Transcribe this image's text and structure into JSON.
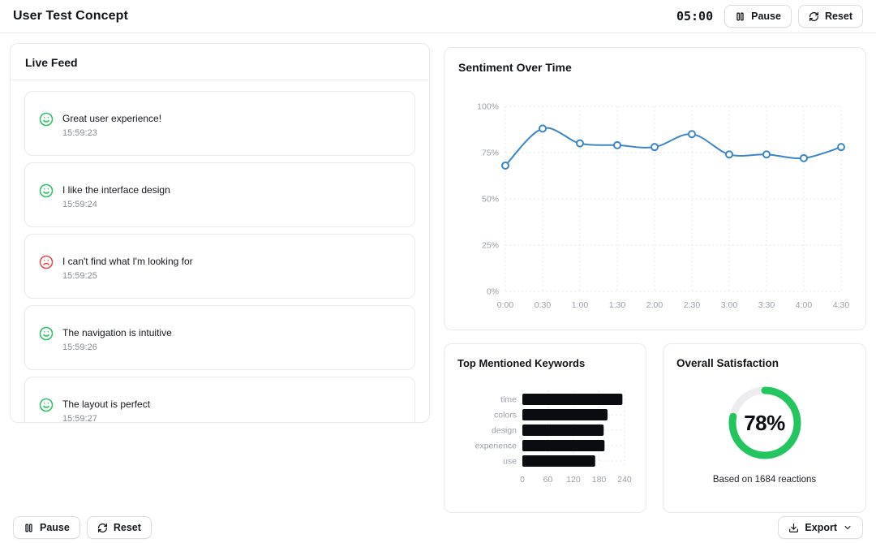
{
  "header": {
    "title": "User Test Concept",
    "timer": "05:00",
    "pause_label": "Pause",
    "reset_label": "Reset"
  },
  "live_feed": {
    "title": "Live Feed",
    "items": [
      {
        "sentiment": "positive",
        "text": "Great user experience!",
        "time": "15:59:23"
      },
      {
        "sentiment": "positive",
        "text": "I like the interface design",
        "time": "15:59:24"
      },
      {
        "sentiment": "negative",
        "text": "I can't find what I'm looking for",
        "time": "15:59:25"
      },
      {
        "sentiment": "positive",
        "text": "The navigation is intuitive",
        "time": "15:59:26"
      },
      {
        "sentiment": "positive",
        "text": "The layout is perfect",
        "time": "15:59:27"
      }
    ]
  },
  "chart_data": [
    {
      "type": "line",
      "title": "Sentiment Over Time",
      "x": [
        "0:00",
        "0:30",
        "1:00",
        "1:30",
        "2:00",
        "2:30",
        "3:00",
        "3:30",
        "4:00",
        "4:30"
      ],
      "values": [
        68,
        88,
        80,
        79,
        78,
        85,
        74,
        74,
        72,
        78
      ],
      "ylim": [
        0,
        100
      ],
      "yticks": [
        "0%",
        "25%",
        "50%",
        "75%",
        "100%"
      ],
      "grid": true,
      "legend": "none",
      "line_color": "#3d85c6",
      "marker": "open-circle"
    },
    {
      "type": "bar",
      "title": "Top Mentioned Keywords",
      "orientation": "horizontal",
      "categories": [
        "time",
        "colors",
        "design",
        "experience",
        "use"
      ],
      "values": [
        235,
        200,
        191,
        193,
        171
      ],
      "xlim": [
        0,
        240
      ],
      "xticks": [
        0,
        60,
        120,
        180,
        240
      ],
      "grid": true,
      "bar_color": "#0b0c0f"
    },
    {
      "type": "pie",
      "subtype": "donut",
      "title": "Overall Satisfaction",
      "value_pct": 78,
      "label": "78%",
      "caption": "Based on 1684 reactions",
      "arc_color": "#22c55e",
      "track_color": "#ededef"
    }
  ],
  "footer": {
    "pause_label": "Pause",
    "reset_label": "Reset",
    "export_label": "Export"
  },
  "icons": {
    "pause": "pause-icon (two bars)",
    "reset": "refresh-icon (circular arrows)",
    "positive": "smile-icon",
    "negative": "frown-icon",
    "export": "download-icon",
    "export_menu": "chevron-down-icon"
  },
  "colors": {
    "positive": "#22c55e",
    "negative": "#ef4444",
    "line": "#3d85c6",
    "bar": "#0b0c0f",
    "border": "#e7e9ec",
    "muted_text": "#9aa0a8"
  }
}
